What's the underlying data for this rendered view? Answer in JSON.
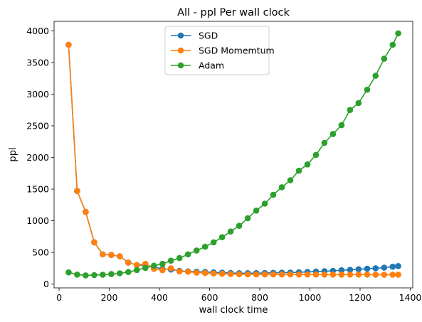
{
  "chart_data": {
    "type": "line",
    "title": "All - ppl Per wall clock",
    "xlabel": "wall clock time",
    "ylabel": "ppl",
    "xlim": [
      -20,
      1410
    ],
    "ylim": [
      -60,
      4150
    ],
    "xticks": [
      0,
      200,
      400,
      600,
      800,
      1000,
      1200,
      1400
    ],
    "yticks": [
      0,
      500,
      1000,
      1500,
      2000,
      2500,
      3000,
      3500,
      4000
    ],
    "grid": false,
    "legend_position": "top-center",
    "series": [
      {
        "name": "SGD",
        "color": "#1f77b4",
        "x": [
          38,
          72,
          106,
          140,
          174,
          208,
          242,
          276,
          310,
          344,
          378,
          412,
          446,
          480,
          514,
          548,
          582,
          616,
          650,
          684,
          718,
          752,
          786,
          820,
          854,
          888,
          922,
          956,
          990,
          1024,
          1058,
          1092,
          1126,
          1160,
          1194,
          1228,
          1262,
          1296,
          1330,
          1352
        ],
        "y": [
          3780,
          1470,
          1140,
          660,
          470,
          460,
          440,
          340,
          300,
          300,
          270,
          240,
          230,
          210,
          200,
          195,
          190,
          185,
          180,
          175,
          172,
          172,
          173,
          175,
          178,
          180,
          183,
          187,
          192,
          197,
          203,
          210,
          218,
          226,
          234,
          242,
          250,
          260,
          275,
          285
        ]
      },
      {
        "name": "SGD Momemtum",
        "color": "#ff7f0e",
        "x": [
          38,
          72,
          106,
          140,
          174,
          208,
          242,
          276,
          310,
          344,
          378,
          412,
          446,
          480,
          514,
          548,
          582,
          616,
          650,
          684,
          718,
          752,
          786,
          820,
          854,
          888,
          922,
          956,
          990,
          1024,
          1058,
          1092,
          1126,
          1160,
          1194,
          1228,
          1262,
          1296,
          1330,
          1352
        ],
        "y": [
          3780,
          1470,
          1140,
          660,
          470,
          460,
          440,
          340,
          300,
          320,
          240,
          220,
          250,
          200,
          195,
          180,
          175,
          168,
          162,
          158,
          155,
          153,
          152,
          152,
          152,
          152,
          152,
          151,
          151,
          151,
          150,
          150,
          150,
          150,
          150,
          150,
          149,
          149,
          149,
          149
        ]
      },
      {
        "name": "Adam",
        "color": "#2ca02c",
        "x": [
          38,
          72,
          106,
          140,
          174,
          208,
          242,
          276,
          310,
          344,
          378,
          412,
          446,
          480,
          514,
          548,
          582,
          616,
          650,
          684,
          718,
          752,
          786,
          820,
          854,
          888,
          922,
          956,
          990,
          1024,
          1058,
          1092,
          1126,
          1160,
          1194,
          1228,
          1262,
          1296,
          1330,
          1352
        ],
        "y": [
          185,
          150,
          138,
          142,
          148,
          158,
          170,
          190,
          222,
          255,
          290,
          320,
          370,
          410,
          470,
          530,
          590,
          660,
          740,
          830,
          920,
          1040,
          1160,
          1270,
          1410,
          1530,
          1640,
          1790,
          1890,
          2040,
          2230,
          2370,
          2510,
          2750,
          2860,
          3070,
          3290,
          3560,
          3780,
          3960
        ]
      }
    ]
  }
}
